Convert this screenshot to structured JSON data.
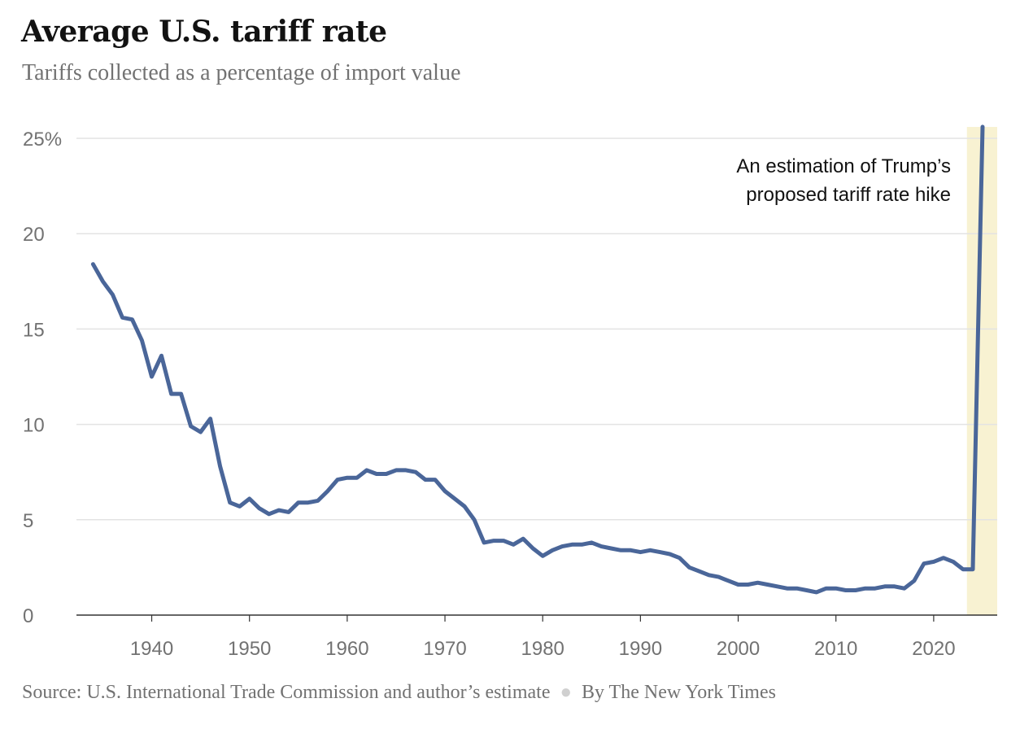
{
  "title": "Average U.S. tariff rate",
  "subtitle": "Tariffs collected as a percentage of import value",
  "footer": {
    "source": "Source: U.S. International Trade Commission and author’s estimate",
    "byline": "By The New York Times"
  },
  "colors": {
    "line": "#4a6699",
    "highlight": "#f8f2d2",
    "grid": "#e3e3e3",
    "axis": "#333333"
  },
  "chart_data": {
    "type": "line",
    "title": "Average U.S. tariff rate",
    "subtitle": "Tariffs collected as a percentage of import value",
    "xlim": [
      1932.3,
      2026.5
    ],
    "ylim": [
      0,
      25
    ],
    "x_ticks": [
      1940,
      1950,
      1960,
      1970,
      1980,
      1990,
      2000,
      2010,
      2020
    ],
    "y_ticks": [
      {
        "value": 0,
        "label": "0"
      },
      {
        "value": 5,
        "label": "5"
      },
      {
        "value": 10,
        "label": "10"
      },
      {
        "value": 15,
        "label": "15"
      },
      {
        "value": 20,
        "label": "20"
      },
      {
        "value": 25,
        "label": "25%"
      }
    ],
    "grid": true,
    "highlight_band": [
      2023.4,
      2026.5
    ],
    "annotation": [
      "An estimation of Trump’s",
      "proposed tariff rate hike"
    ],
    "series": [
      {
        "x": [
          1934,
          1935,
          1936,
          1937,
          1938,
          1939,
          1940,
          1941,
          1942,
          1943,
          1944,
          1945,
          1946,
          1947,
          1948,
          1949,
          1950,
          1951,
          1952,
          1953,
          1954,
          1955,
          1956,
          1957,
          1958,
          1959,
          1960,
          1961,
          1962,
          1963,
          1964,
          1965,
          1966,
          1967,
          1968,
          1969,
          1970,
          1971,
          1972,
          1973,
          1974,
          1975,
          1976,
          1977,
          1978,
          1979,
          1980,
          1981,
          1982,
          1983,
          1984,
          1985,
          1986,
          1987,
          1988,
          1989,
          1990,
          1991,
          1992,
          1993,
          1994,
          1995,
          1996,
          1997,
          1998,
          1999,
          2000,
          2001,
          2002,
          2003,
          2004,
          2005,
          2006,
          2007,
          2008,
          2009,
          2010,
          2011,
          2012,
          2013,
          2014,
          2015,
          2016,
          2017,
          2018,
          2019,
          2020,
          2021,
          2022,
          2023,
          2024,
          2025
        ],
        "values": [
          18.4,
          17.5,
          16.8,
          15.6,
          15.5,
          14.4,
          12.5,
          13.6,
          11.6,
          11.6,
          9.9,
          9.6,
          10.3,
          7.8,
          5.9,
          5.7,
          6.1,
          5.6,
          5.3,
          5.5,
          5.4,
          5.9,
          5.9,
          6.0,
          6.5,
          7.1,
          7.2,
          7.2,
          7.6,
          7.4,
          7.4,
          7.6,
          7.6,
          7.5,
          7.1,
          7.1,
          6.5,
          6.1,
          5.7,
          5.0,
          3.8,
          3.9,
          3.9,
          3.7,
          4.0,
          3.5,
          3.1,
          3.4,
          3.6,
          3.7,
          3.7,
          3.8,
          3.6,
          3.5,
          3.4,
          3.4,
          3.3,
          3.4,
          3.3,
          3.2,
          3.0,
          2.5,
          2.3,
          2.1,
          2.0,
          1.8,
          1.6,
          1.6,
          1.7,
          1.6,
          1.5,
          1.4,
          1.4,
          1.3,
          1.2,
          1.4,
          1.4,
          1.3,
          1.3,
          1.4,
          1.4,
          1.5,
          1.5,
          1.4,
          1.8,
          2.7,
          2.8,
          3.0,
          2.8,
          2.4,
          2.4,
          25.6
        ]
      }
    ]
  }
}
